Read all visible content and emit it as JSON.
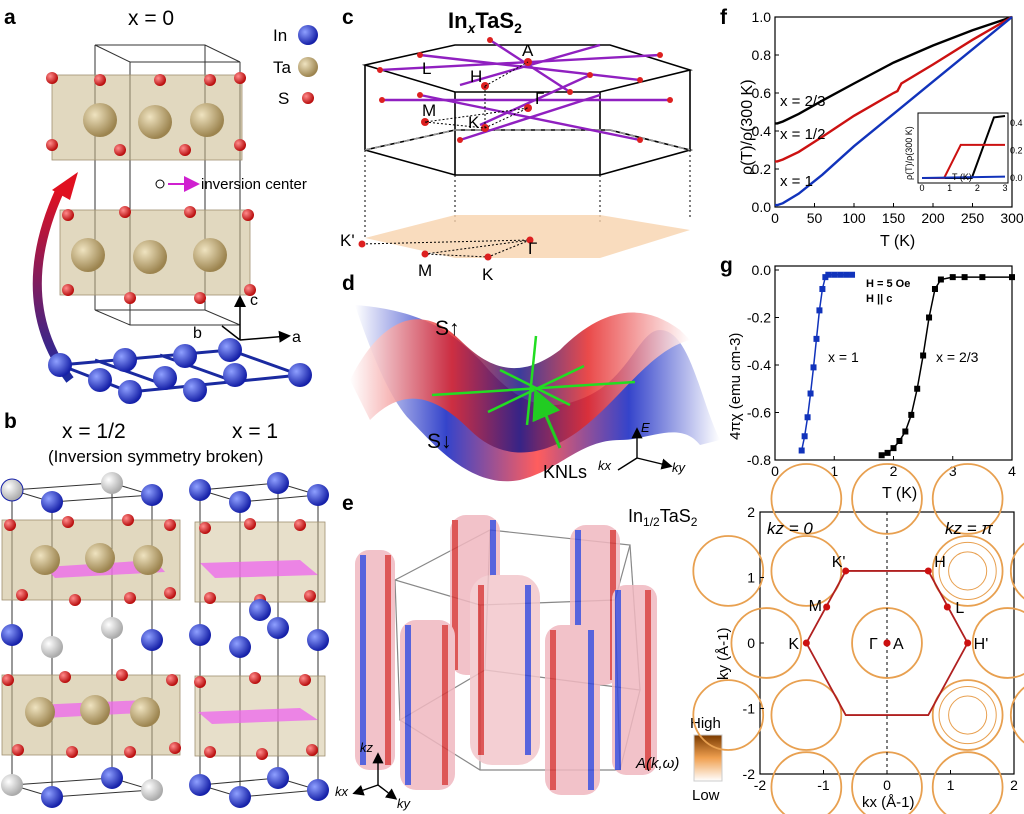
{
  "panels": {
    "a": {
      "letter": "a",
      "title": "x = 0",
      "legend": [
        {
          "label": "In",
          "color": "#2233cc"
        },
        {
          "label": "Ta",
          "color": "#b8a070"
        },
        {
          "label": "S",
          "color": "#dd2222"
        }
      ],
      "inversion_label": "inversion center",
      "axes": [
        "c",
        "b",
        "a"
      ]
    },
    "b": {
      "letter": "b",
      "title_left": "x = 1/2",
      "title_right": "x = 1",
      "subtitle": "(Inversion symmetry broken)"
    },
    "c": {
      "letter": "c",
      "title": "InxTaS2",
      "points": [
        "A",
        "L",
        "H",
        "Γ",
        "M",
        "K",
        "K'",
        "Γ",
        "M",
        "K"
      ]
    },
    "d": {
      "letter": "d",
      "spin_up": "S↑",
      "spin_down": "S↓",
      "knls": "KNLs",
      "axes": [
        "E",
        "kx",
        "ky"
      ]
    },
    "e": {
      "letter": "e",
      "title": "In1/2TaS2",
      "colorbar_high": "High",
      "colorbar_low": "Low",
      "colorbar_label": "A(k,ω)",
      "axes": [
        "kz",
        "kx",
        "ky"
      ]
    },
    "f": {
      "letter": "f",
      "ylabel": "ρ(T)/ρ(300 K)",
      "xlabel": "T (K)",
      "series_labels": [
        "x = 2/3",
        "x = 1/2",
        "x = 1"
      ],
      "inset_ylabel": "ρ(T)/ρ(300 K)",
      "inset_xlabel": "T (K)"
    },
    "g": {
      "letter": "g",
      "ylabel": "4πχ (emu cm-3)",
      "xlabel": "T (K)",
      "field": "H = 5 Oe",
      "orientation": "H || c",
      "series_labels": [
        "x = 1",
        "x = 2/3"
      ]
    },
    "h": {
      "kz0": "kz = 0",
      "kzpi": "kz = π",
      "points": [
        "K'",
        "H",
        "M",
        "L",
        "K",
        "Γ",
        "A",
        "H'"
      ],
      "xlabel": "kx (Å-1)",
      "ylabel": "ky (Å-1)"
    }
  },
  "chart_data": [
    {
      "type": "line",
      "panel": "f",
      "xlabel": "T (K)",
      "ylabel": "ρ(T)/ρ(300 K)",
      "xlim": [
        0,
        300
      ],
      "ylim": [
        0,
        1.0
      ],
      "xticks": [
        0,
        50,
        100,
        150,
        200,
        250,
        300
      ],
      "yticks": [
        0.0,
        0.2,
        0.4,
        0.6,
        0.8,
        1.0
      ],
      "series": [
        {
          "name": "x = 2/3",
          "color": "#000000",
          "x": [
            0,
            3,
            10,
            30,
            60,
            100,
            150,
            200,
            250,
            300
          ],
          "y": [
            0.44,
            0.44,
            0.45,
            0.49,
            0.56,
            0.65,
            0.76,
            0.85,
            0.93,
            1.0
          ]
        },
        {
          "name": "x = 1/2",
          "color": "#cc1111",
          "x": [
            0,
            3,
            10,
            30,
            60,
            100,
            150,
            155,
            160,
            200,
            250,
            300
          ],
          "y": [
            0.24,
            0.24,
            0.25,
            0.29,
            0.37,
            0.48,
            0.6,
            0.61,
            0.65,
            0.75,
            0.88,
            1.0
          ]
        },
        {
          "name": "x = 1",
          "color": "#1133bb",
          "x": [
            0,
            3,
            10,
            30,
            60,
            100,
            150,
            200,
            250,
            300
          ],
          "y": [
            0.01,
            0.01,
            0.02,
            0.07,
            0.17,
            0.32,
            0.49,
            0.66,
            0.83,
            1.0
          ]
        }
      ],
      "inset": {
        "xlim": [
          0,
          3
        ],
        "ylim": [
          0,
          0.45
        ],
        "xticks": [
          0,
          1,
          2,
          3
        ],
        "yticks": [
          0.0,
          0.2,
          0.4
        ],
        "series": [
          {
            "color": "#000000",
            "x": [
              0,
              1.8,
              2.6,
              3.0
            ],
            "y": [
              0,
              0,
              0.44,
              0.45
            ]
          },
          {
            "color": "#cc1111",
            "x": [
              0,
              0.8,
              1.4,
              3.0
            ],
            "y": [
              0,
              0,
              0.24,
              0.24
            ]
          },
          {
            "color": "#1133bb",
            "x": [
              0,
              3.0
            ],
            "y": [
              0.0,
              0.01
            ]
          }
        ]
      }
    },
    {
      "type": "scatter",
      "panel": "g",
      "xlabel": "T (K)",
      "ylabel": "4πχ (emu cm-3)",
      "xlim": [
        0,
        4
      ],
      "ylim": [
        -0.8,
        0.0
      ],
      "xticks": [
        0,
        1,
        2,
        3,
        4
      ],
      "yticks": [
        0.0,
        -0.2,
        -0.4,
        -0.6,
        -0.8
      ],
      "series": [
        {
          "name": "x = 1",
          "color": "#1133bb",
          "x": [
            0.45,
            0.5,
            0.55,
            0.6,
            0.65,
            0.7,
            0.75,
            0.8,
            0.85,
            0.9,
            1.0,
            1.1,
            1.2,
            1.3
          ],
          "y": [
            -0.76,
            -0.7,
            -0.62,
            -0.52,
            -0.41,
            -0.29,
            -0.17,
            -0.08,
            -0.03,
            -0.02,
            -0.02,
            -0.02,
            -0.02,
            -0.02
          ]
        },
        {
          "name": "x = 2/3",
          "color": "#000000",
          "x": [
            1.8,
            1.9,
            2.0,
            2.1,
            2.2,
            2.3,
            2.4,
            2.5,
            2.6,
            2.7,
            2.8,
            3.0,
            3.2,
            3.5,
            4.0
          ],
          "y": [
            -0.78,
            -0.77,
            -0.75,
            -0.72,
            -0.68,
            -0.61,
            -0.5,
            -0.36,
            -0.2,
            -0.08,
            -0.04,
            -0.03,
            -0.03,
            -0.03,
            -0.03
          ]
        }
      ]
    },
    {
      "type": "heatmap",
      "panel": "h",
      "xlabel": "kx (Å-1)",
      "ylabel": "ky (Å-1)",
      "xlim": [
        -2,
        2
      ],
      "ylim": [
        -2,
        2
      ],
      "xticks": [
        -2,
        -1,
        0,
        1,
        2
      ],
      "yticks": [
        2,
        1,
        0,
        -1,
        -2
      ],
      "points": [
        {
          "label": "K'",
          "x": -0.65,
          "y": 1.1
        },
        {
          "label": "H",
          "x": 0.65,
          "y": 1.1
        },
        {
          "label": "M",
          "x": -0.95,
          "y": 0.55
        },
        {
          "label": "L",
          "x": 0.95,
          "y": 0.55
        },
        {
          "label": "K",
          "x": -1.27,
          "y": 0.0
        },
        {
          "label": "Γ",
          "x": 0.0,
          "y": 0.0
        },
        {
          "label": "A",
          "x": 0.0,
          "y": 0.0
        },
        {
          "label": "H'",
          "x": 1.27,
          "y": 0.0
        }
      ]
    }
  ]
}
